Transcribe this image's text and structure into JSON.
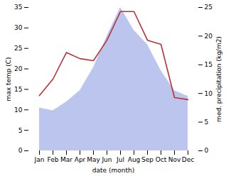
{
  "chart_data": {
    "type": "line",
    "categories": [
      "Jan",
      "Feb",
      "Mar",
      "Apr",
      "May",
      "Jun",
      "Jul",
      "Aug",
      "Sep",
      "Oct",
      "Nov",
      "Dec"
    ],
    "xlabel": "date (month)",
    "ylabel": "max temp (C)",
    "y2label": "med. precipitation (kg/m2)",
    "series": [
      {
        "type": "area",
        "axis": "y2",
        "color": "#bbc5ee",
        "values": [
          7.5,
          7.0,
          8.5,
          10.5,
          14.5,
          20.0,
          25.0,
          21.0,
          18.5,
          14.0,
          10.5,
          9.5
        ]
      },
      {
        "type": "line",
        "color": "#b83232",
        "values": [
          13.5,
          17.5,
          24.0,
          22.5,
          22.0,
          27.0,
          34.0,
          34.0,
          27.0,
          26.0,
          13.0,
          12.5
        ]
      }
    ],
    "ylim": [
      0,
      35
    ],
    "yticks": [
      0,
      5,
      10,
      15,
      20,
      25,
      30,
      35
    ],
    "y2lim": [
      0,
      25
    ],
    "y2ticks": [
      0,
      5,
      10,
      15,
      20,
      25
    ],
    "grid": false
  }
}
